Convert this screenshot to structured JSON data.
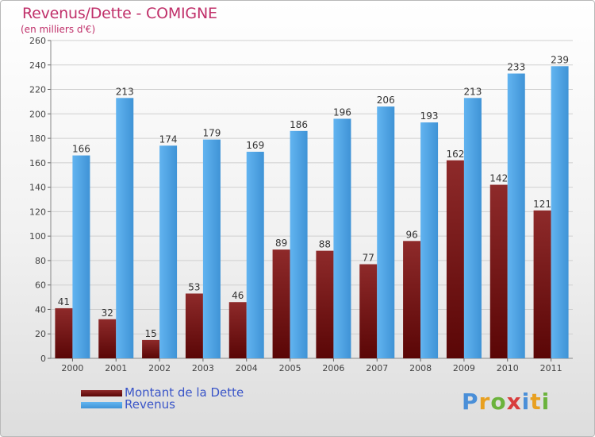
{
  "chart_data": {
    "type": "bar",
    "title": "Revenus/Dette - COMIGNE",
    "subtitle": "(en milliers d'€)",
    "xlabel": "",
    "ylabel": "",
    "ylim": [
      0,
      260
    ],
    "yticks": [
      0,
      20,
      40,
      60,
      80,
      100,
      120,
      140,
      160,
      180,
      200,
      220,
      240,
      260
    ],
    "grid": true,
    "categories": [
      "2000",
      "2001",
      "2002",
      "2003",
      "2004",
      "2005",
      "2006",
      "2007",
      "2008",
      "2009",
      "2010",
      "2011"
    ],
    "series": [
      {
        "name": "Montant de la Dette",
        "color": "#8b1a1a",
        "values": [
          41,
          32,
          15,
          53,
          46,
          89,
          88,
          77,
          96,
          162,
          142,
          121
        ]
      },
      {
        "name": "Revenus",
        "color": "#4aa3e6",
        "values": [
          166,
          213,
          174,
          179,
          169,
          186,
          196,
          206,
          193,
          213,
          233,
          239
        ]
      }
    ],
    "legend_position": "bottom-left"
  },
  "logo": {
    "letters": [
      "P",
      "r",
      "o",
      "x",
      "i",
      "t",
      "i"
    ],
    "colors": [
      "#4a8fd8",
      "#e8a020",
      "#6bb33c",
      "#d83c3c",
      "#4a8fd8",
      "#e8a020",
      "#6bb33c"
    ]
  }
}
